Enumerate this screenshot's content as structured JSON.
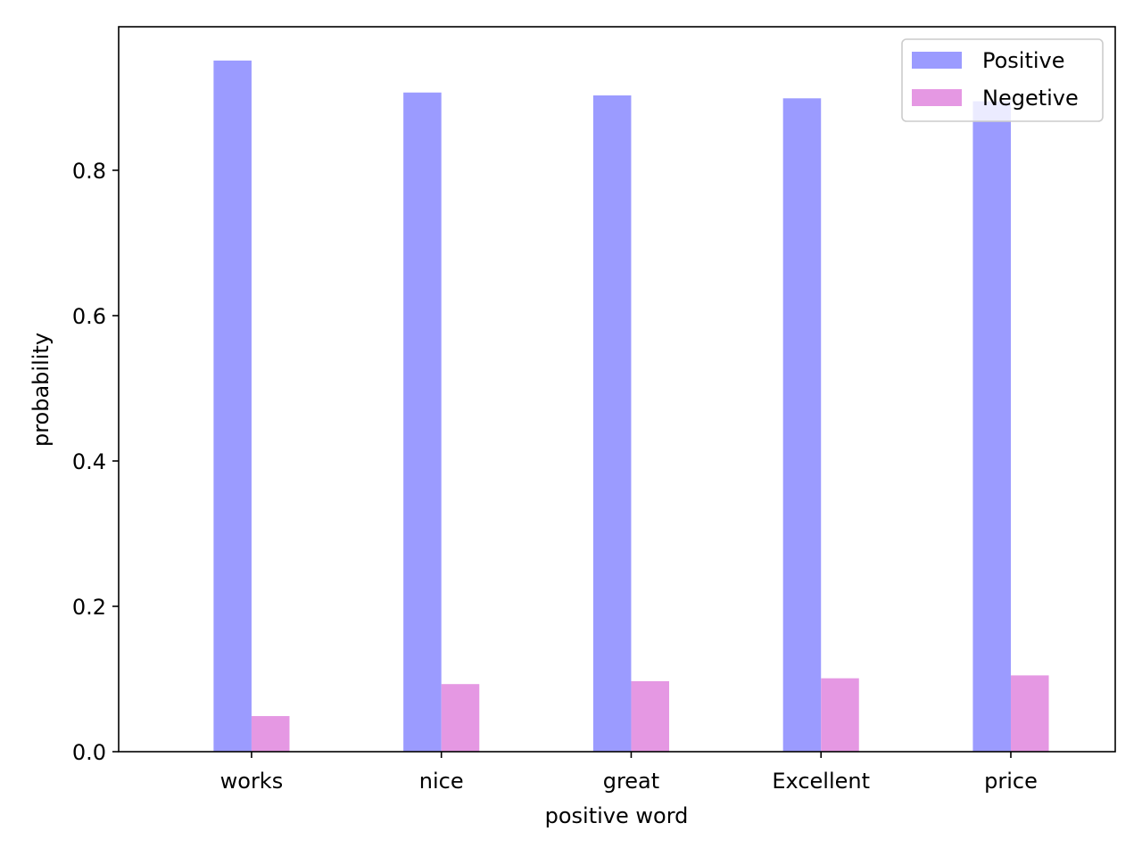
{
  "chart_data": {
    "type": "bar",
    "title": "",
    "xlabel": "positive word",
    "ylabel": "probability",
    "categories": [
      "works",
      "nice",
      "great",
      "Excellent",
      "price"
    ],
    "series": [
      {
        "name": "Positive",
        "color": "#9b9bff",
        "values": [
          0.951,
          0.907,
          0.903,
          0.899,
          0.895
        ]
      },
      {
        "name": "Negetive",
        "color": "#e598e3",
        "values": [
          0.049,
          0.093,
          0.097,
          0.101,
          0.105
        ]
      }
    ],
    "ylim": [
      0,
      0.9975
    ],
    "yticks": [
      0.0,
      0.2,
      0.4,
      0.6,
      0.8
    ],
    "ytick_labels": [
      "0.0",
      "0.2",
      "0.4",
      "0.6",
      "0.8"
    ],
    "grid": false,
    "legend_position": "top-right"
  }
}
